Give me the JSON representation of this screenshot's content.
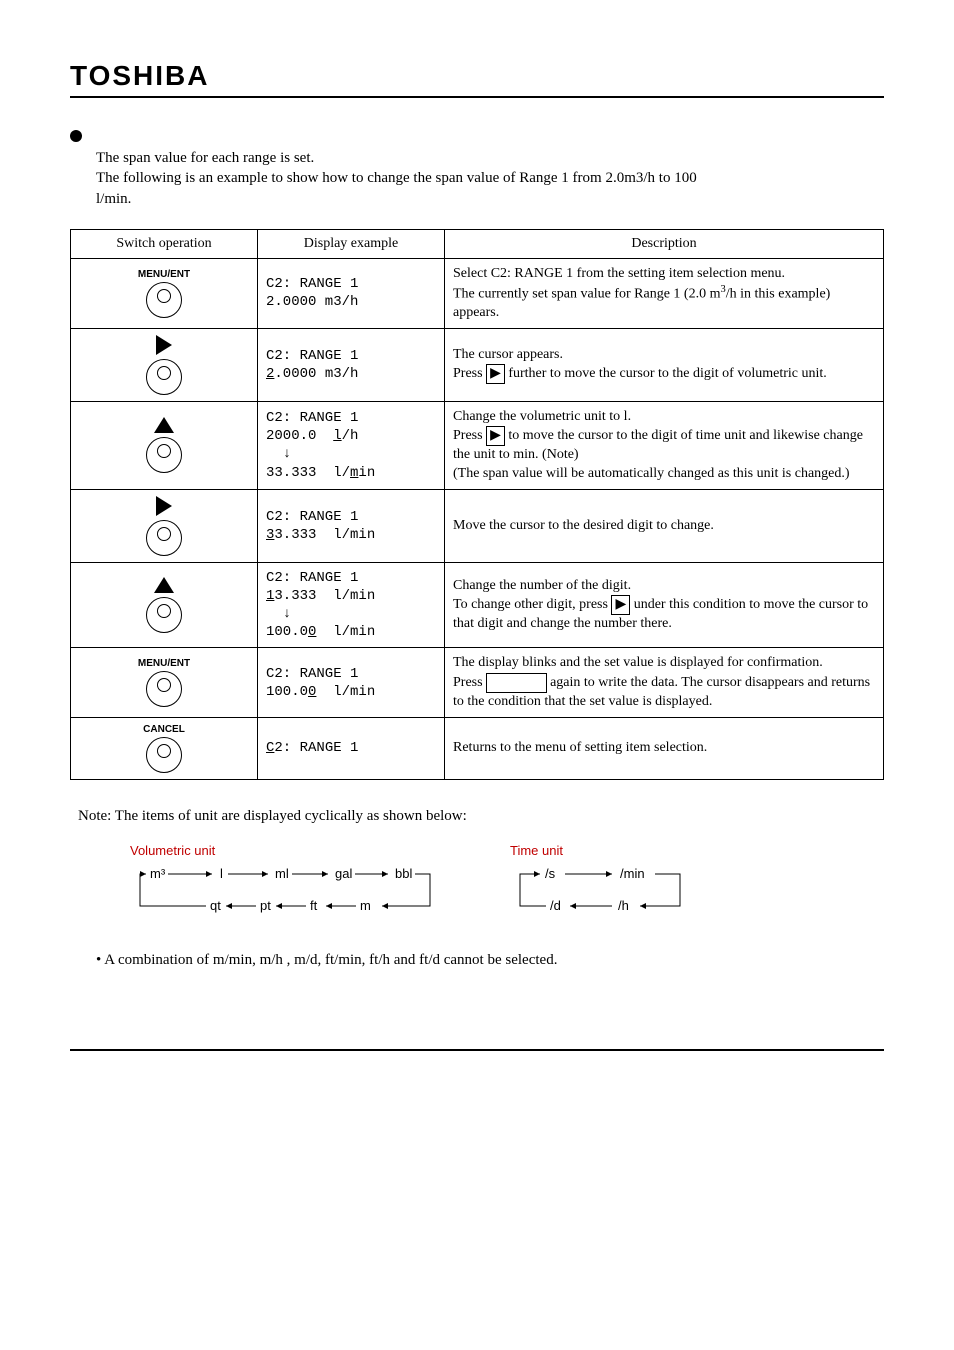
{
  "logo": "TOSHIBA",
  "intro_line1": "The span value for each range is set.",
  "intro_line2_a": "The following is an example to show how to change the span value of Range 1 from 2.0m3/h to 100",
  "intro_line2_b": "l/min.",
  "headers": {
    "switch": "Switch operation",
    "display": "Display example",
    "desc": "Description"
  },
  "rows": [
    {
      "switch_label": "MENU/ENT",
      "switch_icon": "circle",
      "display_html": "C2: RANGE 1\n2.0000 m3/h",
      "desc_html": "Select C2: RANGE 1 from the setting item selection menu.\nThe currently set span value for Range 1 (2.0 m<sup>3</sup>/h in this example) appears."
    },
    {
      "switch_label": "",
      "switch_icon": "right",
      "display_html": "C2: RANGE 1\n<span class=\"u\">2</span>.0000 m3/h",
      "desc_html": "The cursor appears.\nPress <span class=\"boxed\">▶</span> further to move the cursor to the digit of volumetric unit."
    },
    {
      "switch_label": "",
      "switch_icon": "up",
      "display_html": "C2: RANGE 1\n2000.0  <span class=\"u\">l</span>/h\n  ↓\n33.333  l/<span class=\"u\">m</span>in",
      "desc_html": "Change the volumetric unit to l.\nPress <span class=\"boxed\">▶</span> to move the cursor to the digit of time unit and likewise change the unit to min. (Note)\n(The span value will be automatically changed as this unit is changed.)"
    },
    {
      "switch_label": "",
      "switch_icon": "right",
      "display_html": "C2: RANGE 1\n<span class=\"u\">3</span>3.333  l/min",
      "desc_html": "Move the cursor to the desired digit to change."
    },
    {
      "switch_label": "",
      "switch_icon": "up",
      "display_html": "C2: RANGE 1\n<span class=\"u\">1</span>3.333  l/min\n  ↓\n100.0<span class=\"u\">0</span>  l/min",
      "desc_html": "Change the number of the digit.\nTo change other digit, press <span class=\"boxed\">▶</span> under this condition to move the cursor to that digit and change the number there."
    },
    {
      "switch_label": "MENU/ENT",
      "switch_icon": "circle",
      "display_html": "C2: RANGE 1\n100.0<span class=\"u\">0</span>  l/min",
      "desc_html": "The display blinks and the set value is displayed for confirmation.\nPress <span class=\"boxed\">&nbsp;&nbsp;&nbsp;&nbsp;&nbsp;&nbsp;&nbsp;&nbsp;&nbsp;&nbsp;&nbsp;&nbsp;&nbsp;&nbsp;&nbsp;</span> again to write the data. The cursor disappears and returns to the condition that the set value is displayed."
    },
    {
      "switch_label": "CANCEL",
      "switch_icon": "circle",
      "display_html": "<span class=\"u\">C</span>2: RANGE 1",
      "desc_html": "Returns to the menu of setting item selection."
    }
  ],
  "note": "Note: The items of unit are displayed cyclically as shown below:",
  "cycle_vol_title": "Volumetric unit",
  "cycle_vol_top": [
    "m³",
    "l",
    "ml",
    "gal",
    "bbl"
  ],
  "cycle_vol_bot": [
    "qt",
    "pt",
    "ft",
    "m"
  ],
  "cycle_time_title": "Time unit",
  "cycle_time_top": [
    "/s",
    "/min"
  ],
  "cycle_time_bot": [
    "/d",
    "/h"
  ],
  "footnote": "A combination of m/min, m/h , m/d, ft/min, ft/h and ft/d cannot be selected.",
  "colors": {
    "red": "#c00000",
    "black": "#000000"
  }
}
